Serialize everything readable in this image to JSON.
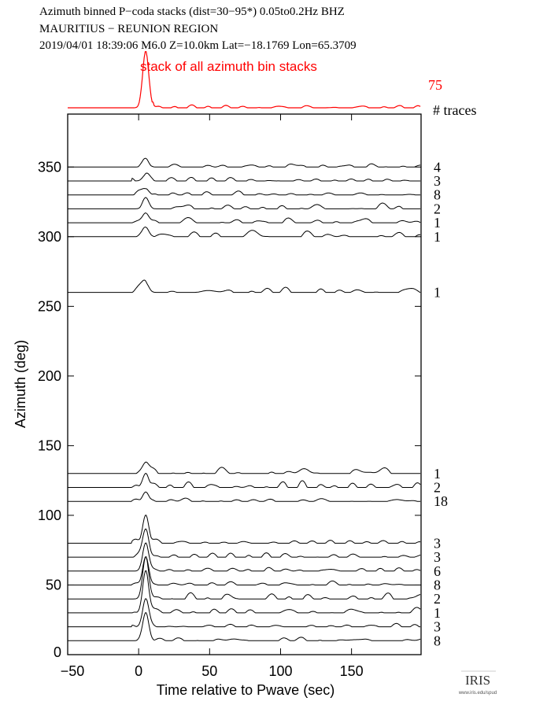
{
  "header": {
    "line1": "Azimuth binned P−coda stacks (dist=30−95*)  0.05to0.2Hz  BHZ",
    "line2": "MAURITIUS − REUNION REGION",
    "line3": "2019/04/01  18:39:06  M6.0  Z=10.0km Lat=−18.1769 Lon=65.3709"
  },
  "logo": {
    "text": "IRIS",
    "url_text": "www.iris.edu/spud"
  },
  "colors": {
    "stack": "#ff0000",
    "trace": "#000000"
  },
  "chart_data": {
    "type": "line",
    "title": "stack of all azimuth bin stacks",
    "stack_total_traces": "75",
    "traces_header": "# traces",
    "xlabel": "Time relative to Pwave (sec)",
    "ylabel": "Azimuth (deg)",
    "xlim": [
      -50,
      199
    ],
    "ylim": [
      0,
      388
    ],
    "xticks": [
      "-50",
      "0",
      "50",
      "100",
      "150"
    ],
    "yticks": [
      "0",
      "50",
      "100",
      "150",
      "200",
      "250",
      "300",
      "350"
    ],
    "series": [
      {
        "azimuth": 350,
        "traces": "4"
      },
      {
        "azimuth": 340,
        "traces": "3"
      },
      {
        "azimuth": 330,
        "traces": "8"
      },
      {
        "azimuth": 320,
        "traces": "2"
      },
      {
        "azimuth": 310,
        "traces": "1"
      },
      {
        "azimuth": 300,
        "traces": "1"
      },
      {
        "azimuth": 260,
        "traces": "1"
      },
      {
        "azimuth": 130,
        "traces": "1"
      },
      {
        "azimuth": 120,
        "traces": "2"
      },
      {
        "azimuth": 110,
        "traces": "18"
      },
      {
        "azimuth": 80,
        "traces": "3"
      },
      {
        "azimuth": 70,
        "traces": "3"
      },
      {
        "azimuth": 60,
        "traces": "6"
      },
      {
        "azimuth": 50,
        "traces": "8"
      },
      {
        "azimuth": 40,
        "traces": "2"
      },
      {
        "azimuth": 30,
        "traces": "1"
      },
      {
        "azimuth": 20,
        "traces": "3"
      },
      {
        "azimuth": 10,
        "traces": "8"
      }
    ]
  }
}
